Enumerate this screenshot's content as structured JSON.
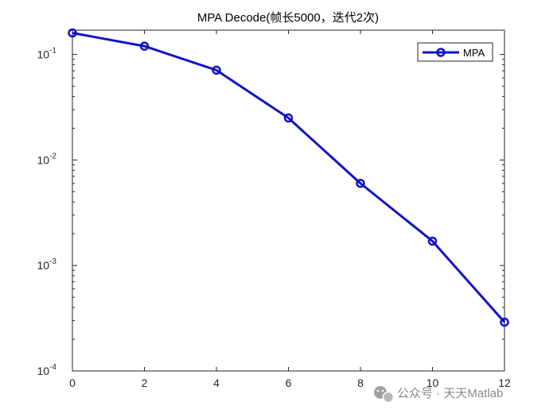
{
  "chart_data": {
    "type": "line",
    "title": "MPA Decode(帧长5000，迭代2次)",
    "xlabel": "",
    "ylabel": "",
    "x": [
      0,
      2,
      4,
      6,
      8,
      10,
      12
    ],
    "series": [
      {
        "name": "MPA",
        "values": [
          0.16,
          0.12,
          0.071,
          0.025,
          0.006,
          0.0017,
          0.00029
        ],
        "color": "#1212c8",
        "marker": "circle"
      }
    ],
    "xlim": [
      0,
      12
    ],
    "ylim": [
      0.0001,
      0.17
    ],
    "yscale": "log",
    "xticks": [
      "0",
      "2",
      "4",
      "6",
      "8",
      "10",
      "12"
    ],
    "yticks": [
      {
        "base": "10",
        "exp": "-1",
        "value": 0.1
      },
      {
        "base": "10",
        "exp": "-2",
        "value": 0.01
      },
      {
        "base": "10",
        "exp": "-3",
        "value": 0.001
      },
      {
        "base": "10",
        "exp": "-4",
        "value": 0.0001
      }
    ],
    "grid": false,
    "legend_position": "top-right"
  },
  "watermark": {
    "text": "公众号 · 天天Matlab",
    "icon": "wechat-icon"
  }
}
